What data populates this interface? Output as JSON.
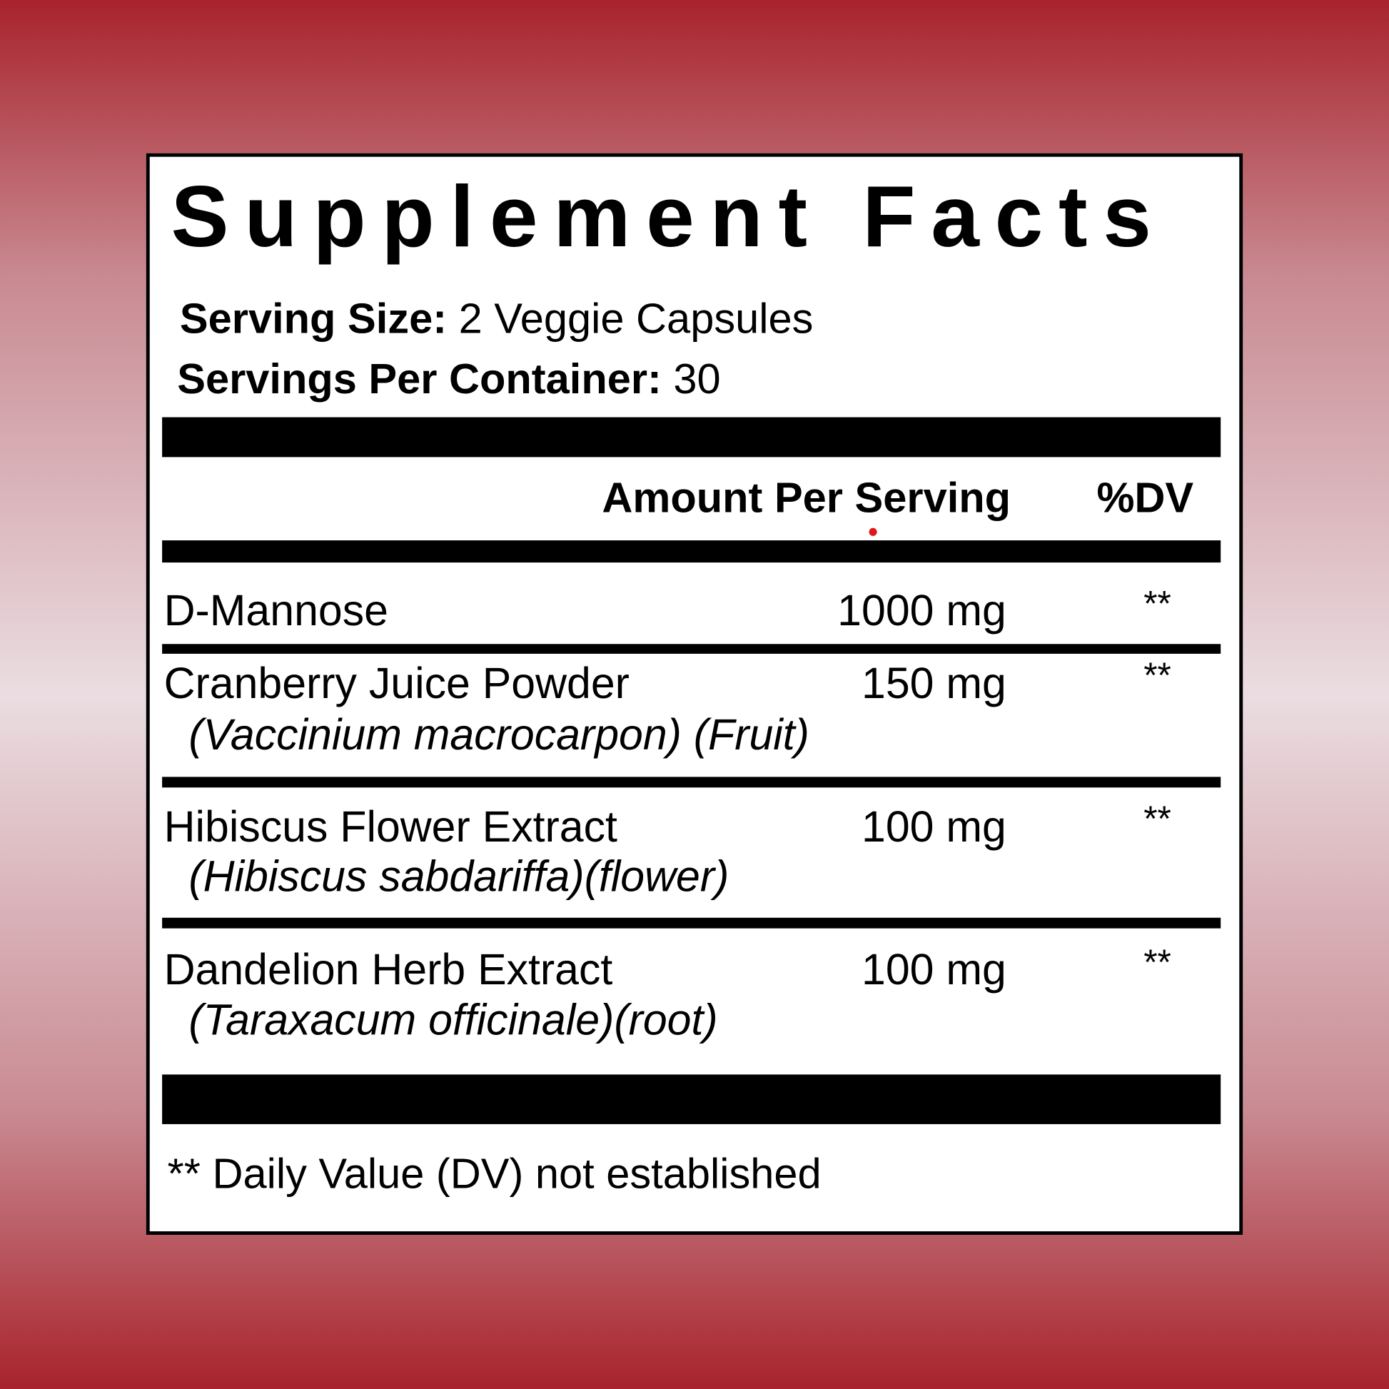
{
  "title": "Supplement Facts",
  "serving_size": {
    "label": "Serving Size:",
    "value": "2 Veggie Capsules"
  },
  "servings_per_container": {
    "label": "Servings Per Container:",
    "value": "30"
  },
  "header": {
    "amount": "Amount Per Serving",
    "dv": "%DV"
  },
  "ingredients": [
    {
      "name": "D-Mannose",
      "scientific": "",
      "amount": "1000 mg",
      "dv": "**"
    },
    {
      "name": "Cranberry Juice Powder",
      "scientific": "(Vaccinium macrocarpon) (Fruit)",
      "amount": "150 mg",
      "dv": "**"
    },
    {
      "name": "Hibiscus Flower Extract",
      "scientific": "(Hibiscus sabdariffa)(flower)",
      "amount": "100 mg",
      "dv": "**"
    },
    {
      "name": "Dandelion Herb Extract",
      "scientific": "(Taraxacum officinale)(root)",
      "amount": "100 mg",
      "dv": "**"
    }
  ],
  "footnote": "** Daily Value (DV) not established",
  "colors": {
    "background_edge": "#a8232c",
    "background_center": "#eadde1",
    "panel": "#ffffff",
    "rules": "#000000"
  }
}
